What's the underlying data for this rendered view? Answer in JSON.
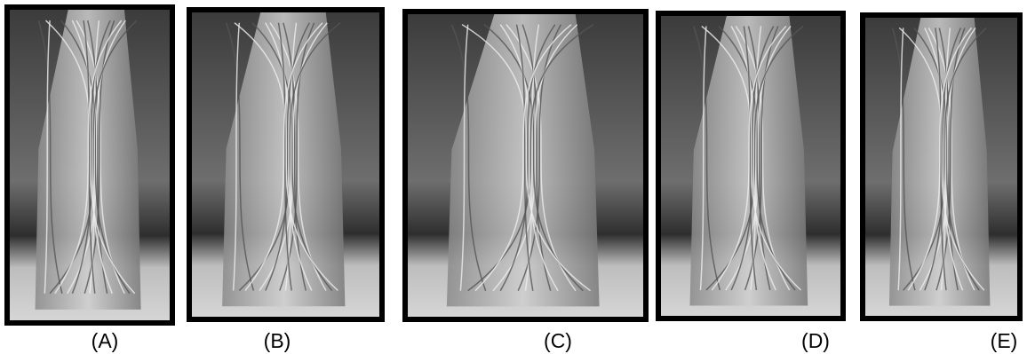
{
  "panels": [
    {
      "label": "(A)"
    },
    {
      "label": "(B)"
    },
    {
      "label": "(C)"
    },
    {
      "label": "(D)"
    },
    {
      "label": "(E)"
    }
  ]
}
